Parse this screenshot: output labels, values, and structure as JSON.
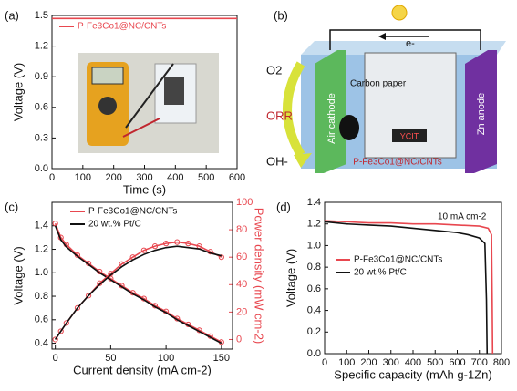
{
  "chart_data": [
    {
      "type": "line",
      "panel_label": "(a)",
      "xlabel": "Time (s)",
      "ylabel": "Voltage (V)",
      "x": [
        0,
        600
      ],
      "series": [
        {
          "name": "P-Fe3Co1@NC/CNTs",
          "color": "#e8474f",
          "values": [
            1.47,
            1.47
          ]
        }
      ],
      "xlim": [
        0,
        600
      ],
      "xticks": [
        0,
        100,
        200,
        300,
        400,
        500,
        600
      ],
      "ylim": [
        0,
        1.5
      ],
      "yticks": [
        {
          "value": 0,
          "label": "0.0"
        },
        0.3,
        0.6,
        0.9,
        1.2,
        1.5
      ],
      "legend": "upper left"
    },
    {
      "type": "line",
      "panel_label": "(c)",
      "xlabel": "Current density (mA cm-2)",
      "ylabel": "Voltage (V)",
      "y2label": "Power density (mW cm-2)",
      "y2color": "#e8474f",
      "x": [
        0,
        5,
        10,
        20,
        30,
        40,
        50,
        60,
        70,
        80,
        90,
        100,
        110,
        120,
        130,
        140,
        150
      ],
      "series": [
        {
          "name": "P-Fe3Co1@NC/CNTs",
          "color": "#e8474f",
          "marker": "circle",
          "values": [
            1.42,
            1.3,
            1.24,
            1.15,
            1.08,
            1.01,
            0.95,
            0.89,
            0.83,
            0.78,
            0.72,
            0.67,
            0.61,
            0.56,
            0.51,
            0.46,
            0.41
          ]
        },
        {
          "name": "20 wt.% Pt/C",
          "color": "#111111",
          "values": [
            1.4,
            1.28,
            1.22,
            1.14,
            1.07,
            1.0,
            0.94,
            0.88,
            0.82,
            0.77,
            0.71,
            0.66,
            0.6,
            0.55,
            0.5,
            0.45,
            0.4
          ]
        },
        {
          "color": "#e8474f",
          "marker": "circle",
          "axis": "y2",
          "values": [
            0,
            6,
            12,
            23,
            32,
            41,
            48,
            55,
            60,
            65,
            68,
            70,
            71,
            70,
            68,
            64,
            60
          ]
        },
        {
          "color": "#111111",
          "axis": "y2",
          "values": [
            0,
            6,
            12,
            23,
            32,
            40,
            47,
            53,
            58,
            62,
            65,
            67,
            68,
            67,
            66,
            63,
            61
          ]
        }
      ],
      "xlim": [
        -3,
        160
      ],
      "xticks": [
        0,
        50,
        100,
        150
      ],
      "ylim": [
        0.35,
        1.6
      ],
      "yticks": [
        0.4,
        0.6,
        0.8,
        {
          "value": 1,
          "label": "1.0"
        },
        1.2,
        1.4
      ],
      "y2lim": [
        -7,
        100
      ],
      "y2ticks": [
        0,
        20,
        40,
        60,
        80,
        100
      ],
      "legend": "upper center"
    },
    {
      "type": "line",
      "panel_label": "(d)",
      "xlabel": "Specific capacity (mAh g-1Zn)",
      "ylabel": "Voltage (V)",
      "annotation": "10 mA cm-2",
      "series": [
        {
          "name": "P-Fe3Co1@NC/CNTs",
          "color": "#e8474f",
          "x": [
            0,
            100,
            200,
            300,
            400,
            500,
            600,
            700,
            740,
            755,
            758,
            760
          ],
          "values": [
            1.23,
            1.22,
            1.21,
            1.21,
            1.2,
            1.2,
            1.19,
            1.18,
            1.16,
            1.1,
            0.5,
            0
          ]
        },
        {
          "name": "20 wt.% Pt/C",
          "color": "#111111",
          "x": [
            0,
            100,
            200,
            300,
            400,
            500,
            600,
            650,
            700,
            725,
            732,
            735
          ],
          "values": [
            1.22,
            1.2,
            1.19,
            1.18,
            1.16,
            1.14,
            1.12,
            1.1,
            1.07,
            1.02,
            0.5,
            0
          ]
        }
      ],
      "xlim": [
        0,
        800
      ],
      "xticks": [
        0,
        100,
        200,
        300,
        400,
        500,
        600,
        700,
        800
      ],
      "ylim": [
        0,
        1.4
      ],
      "yticks": [
        {
          "value": 0,
          "label": "0.0"
        },
        0.2,
        0.4,
        0.6,
        0.8,
        {
          "value": 1,
          "label": "1.0"
        },
        1.2,
        1.4
      ],
      "legend": "center left"
    }
  ],
  "diagram": {
    "panel_label": "(b)",
    "electron": "e-",
    "oxygen": "O2",
    "reaction": "ORR",
    "hydroxide": "OH-",
    "cathode": "Air cathode",
    "paper": "Carbon paper",
    "anode": "Zn anode",
    "catalyst": "P-Fe3Co1@NC/CNTs",
    "display": "YCIT"
  }
}
